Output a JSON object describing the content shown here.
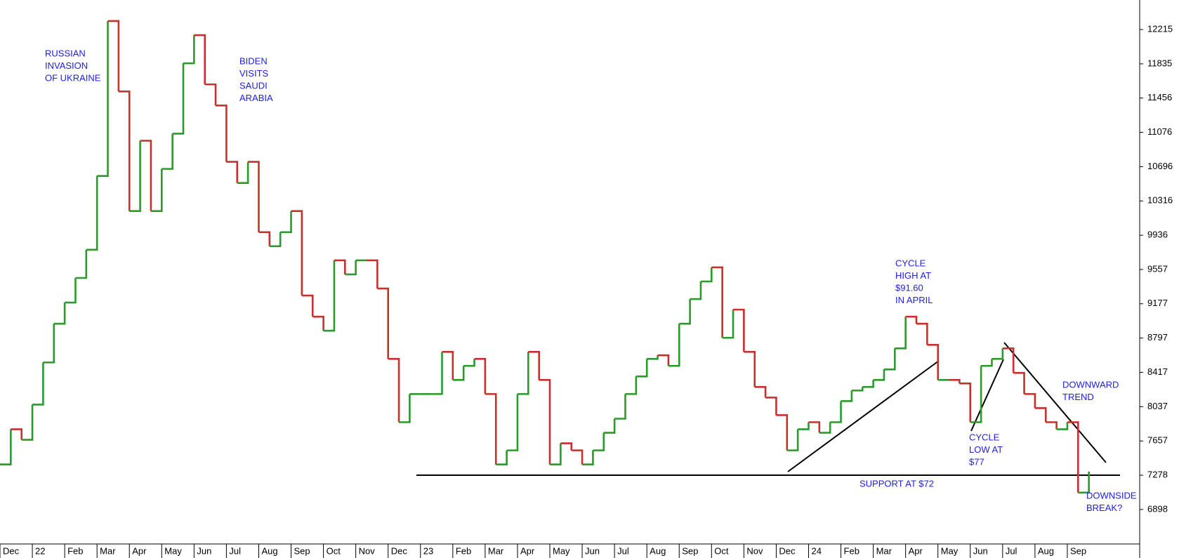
{
  "chart_data": {
    "type": "line",
    "categories": [
      "Dec",
      null,
      null,
      "22",
      null,
      null,
      "Feb",
      null,
      null,
      "Mar",
      null,
      null,
      "Apr",
      null,
      null,
      "May",
      null,
      null,
      "Jun",
      null,
      null,
      "Jul",
      null,
      null,
      "Aug",
      null,
      null,
      "Sep",
      null,
      null,
      "Oct",
      null,
      null,
      "Nov",
      null,
      null,
      "Dec",
      null,
      null,
      "23",
      null,
      null,
      "Feb",
      null,
      null,
      "Mar",
      null,
      null,
      "Apr",
      null,
      null,
      "May",
      null,
      null,
      "Jun",
      null,
      null,
      "Jul",
      null,
      null,
      "Aug",
      null,
      null,
      "Sep",
      null,
      null,
      "Oct",
      null,
      null,
      "Nov",
      null,
      null,
      "Dec",
      null,
      null,
      "24",
      null,
      null,
      "Feb",
      null,
      null,
      "Mar",
      null,
      null,
      "Apr",
      null,
      null,
      "May",
      null,
      null,
      "Jun",
      null,
      null,
      "Jul",
      null,
      null,
      "Aug",
      null,
      null,
      "Sep",
      null,
      null
    ],
    "values": [
      7397,
      7787,
      7670,
      8060,
      8527,
      8956,
      9190,
      9463,
      9775,
      10593,
      12309,
      11529,
      10204,
      10983,
      10204,
      10671,
      11061,
      11841,
      12153,
      11607,
      11373,
      10749,
      10515,
      10749,
      9970,
      9814,
      9970,
      10204,
      9268,
      9034,
      8878,
      9658,
      9502,
      9658,
      9658,
      9346,
      8566,
      7865,
      8177,
      8177,
      8177,
      8644,
      8333,
      8489,
      8566,
      8177,
      7397,
      7553,
      8177,
      8644,
      8333,
      7397,
      7631,
      7553,
      7397,
      7553,
      7748,
      7904,
      8177,
      8372,
      8566,
      8606,
      8489,
      8956,
      9229,
      9424,
      9580,
      8800,
      9112,
      8644,
      8255,
      8138,
      7943,
      7553,
      7787,
      7865,
      7748,
      7865,
      8099,
      8216,
      8255,
      8333,
      8450,
      8683,
      9034,
      8956,
      8722,
      8333,
      8333,
      8294,
      7865,
      8489,
      8566,
      8683,
      8411,
      8177,
      8021,
      7865,
      7787,
      7865,
      7085,
      7319
    ],
    "up_color": "#2a9a2a",
    "down_color": "#c8302c",
    "ylim": [
      6516,
      12542
    ],
    "yticks": [
      6898,
      7278,
      7657,
      8037,
      8417,
      8797,
      9177,
      9557,
      9936,
      10316,
      10696,
      11076,
      11456,
      11835,
      12215
    ],
    "annotations": [
      [
        "RUSSIAN",
        "INVASION",
        "OF UKRAINE"
      ],
      [
        "BIDEN",
        "VISITS",
        "SAUDI",
        "ARABIA"
      ],
      [
        "CYCLE",
        "HIGH AT",
        "$91.60",
        "IN APRIL"
      ],
      [
        "DOWNWARD",
        "TREND"
      ],
      [
        "CYCLE",
        "LOW AT",
        "$77"
      ],
      [
        "SUPPORT AT $72"
      ],
      [
        "DOWNSIDE",
        "BREAK?"
      ]
    ]
  }
}
